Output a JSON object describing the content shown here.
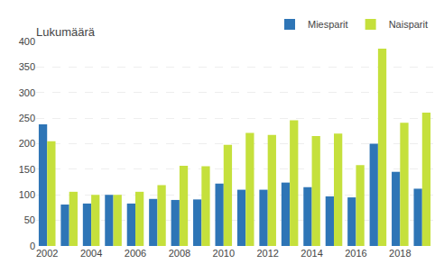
{
  "chart_data": {
    "type": "bar",
    "title": "Lukumäärä",
    "categories": [
      "2002",
      null,
      "2004",
      null,
      "2006",
      null,
      "2008",
      null,
      "2010",
      null,
      "2012",
      null,
      "2014",
      null,
      "2016",
      null,
      "2018",
      null
    ],
    "series": [
      {
        "name": "Miesparit",
        "color": "#2e75b6",
        "values": [
          238,
          81,
          83,
          100,
          83,
          92,
          90,
          91,
          122,
          110,
          110,
          124,
          115,
          97,
          95,
          200,
          145,
          112
        ]
      },
      {
        "name": "Naisparit",
        "color": "#c5e03c",
        "values": [
          205,
          106,
          100,
          100,
          106,
          119,
          157,
          156,
          198,
          221,
          217,
          246,
          215,
          220,
          158,
          386,
          241,
          261
        ]
      }
    ],
    "ylim": [
      0,
      400
    ],
    "yticks": [
      0,
      50,
      100,
      150,
      200,
      250,
      300,
      350,
      400
    ],
    "grid": true,
    "legend": "upper right"
  }
}
